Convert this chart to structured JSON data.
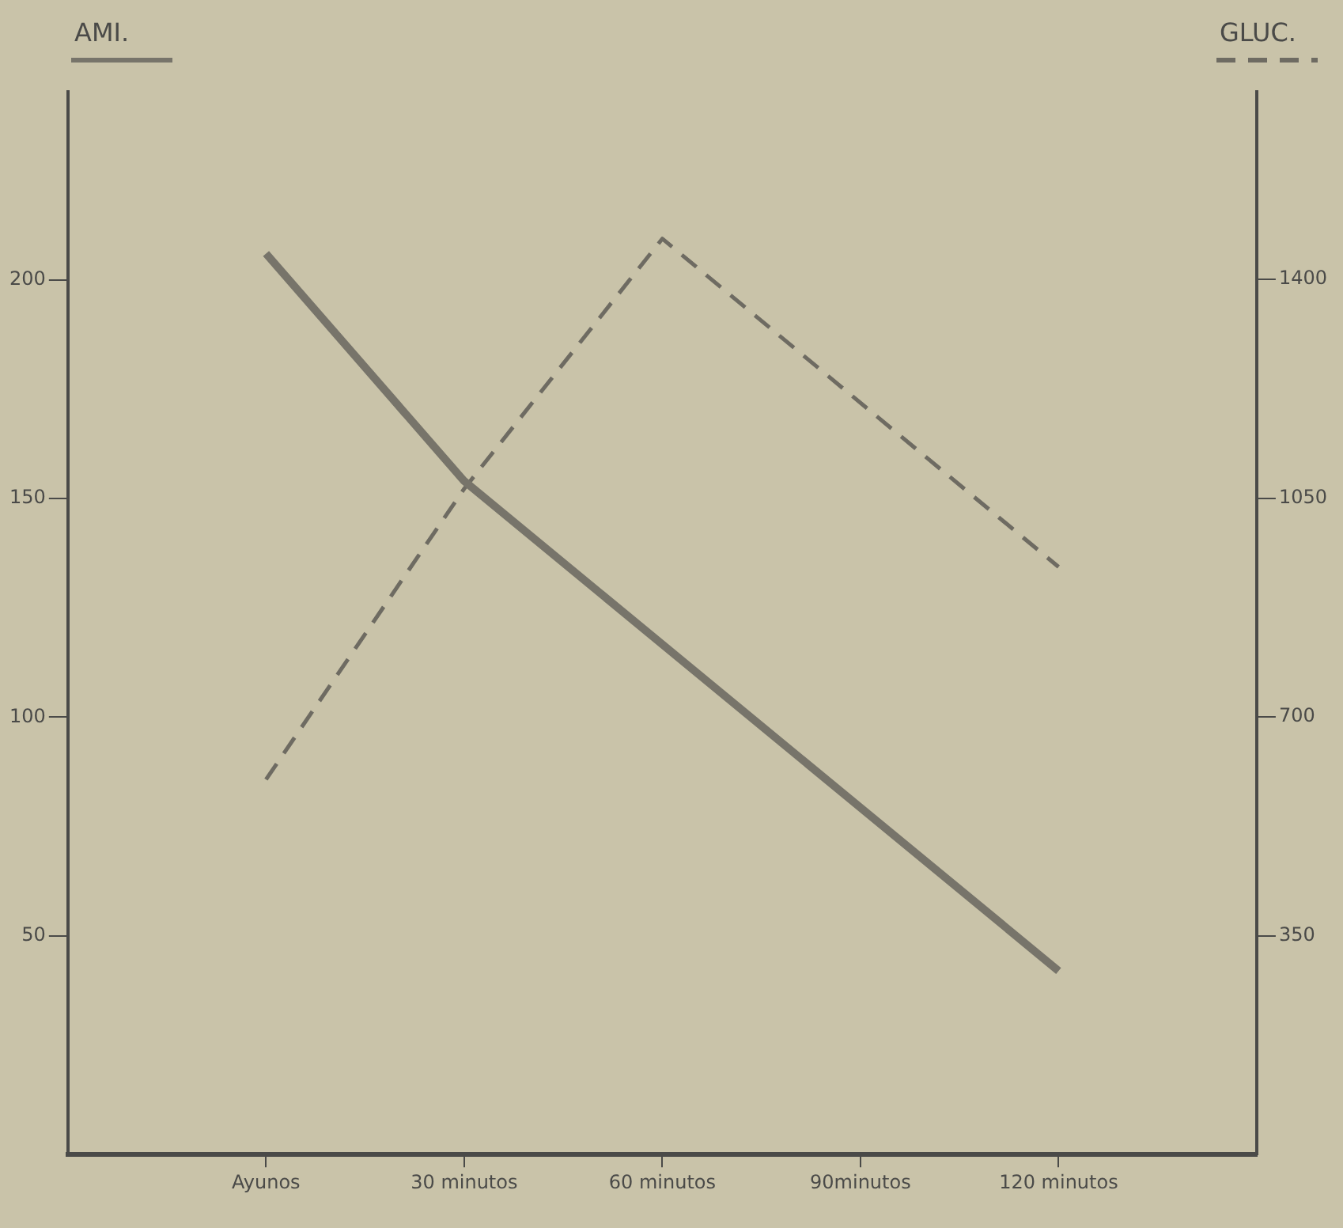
{
  "chart_data": {
    "type": "line",
    "ylabel": "AMI.",
    "y2label": "GLUC.",
    "categories": [
      "Ayunos",
      "30 minutos",
      "60 minutos",
      "90minutos",
      "120 minutos"
    ],
    "series": [
      {
        "color": "#77746a",
        "values": [
          206,
          154,
          null,
          null,
          42
        ],
        "line_style": "solid"
      },
      {
        "color": "#6e6b62",
        "values": [
          600,
          1065,
          1465,
          null,
          940
        ],
        "axis": "y2",
        "line_style": "dashed"
      }
    ],
    "ylim": [
      0,
      243
    ],
    "yticks": [
      50,
      100,
      150,
      200
    ],
    "y2lim": [
      0,
      1700
    ],
    "y2ticks": [
      350,
      700,
      1050,
      1400
    ],
    "grid": false,
    "legend": false,
    "marker": "none"
  }
}
